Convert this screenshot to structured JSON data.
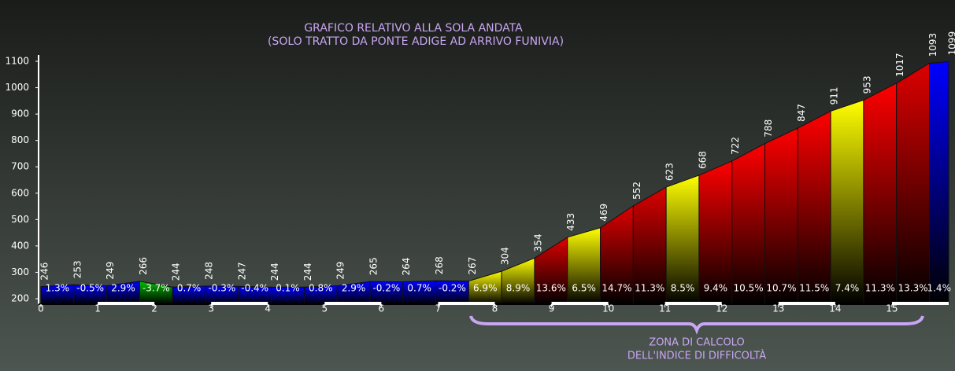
{
  "chart_data": {
    "type": "area",
    "title": "GRAFICO RELATIVO ALLA SOLA ANDATA",
    "subtitle": "(SOLO TRATTO DA PONTE ADIGE AD ARRIVO FUNIVIA)",
    "annotation": [
      "ZONA DI CALCOLO",
      "DELL'INDICE DI DIFFICOLTÀ"
    ],
    "x": [
      0,
      0.58,
      1.16,
      1.74,
      2.32,
      2.9,
      3.48,
      4.06,
      4.64,
      5.22,
      5.8,
      6.38,
      6.96,
      7.54,
      8.12,
      8.7,
      9.28,
      9.86,
      10.44,
      11.02,
      11.6,
      12.18,
      12.76,
      13.34,
      13.92,
      14.5,
      15.08,
      15.66,
      16.0
    ],
    "values": [
      246,
      253,
      249,
      266,
      244,
      248,
      247,
      244,
      244,
      249,
      265,
      264,
      268,
      267,
      304,
      354,
      433,
      469,
      552,
      623,
      668,
      722,
      788,
      847,
      911,
      953,
      1017,
      1093,
      1099
    ],
    "grades": [
      1.3,
      -0.5,
      2.9,
      -3.7,
      0.7,
      -0.3,
      -0.4,
      0.1,
      0.8,
      2.9,
      -0.2,
      0.7,
      -0.2,
      6.9,
      8.9,
      13.6,
      6.5,
      14.7,
      11.3,
      8.5,
      9.4,
      10.5,
      10.7,
      11.5,
      7.4,
      11.3,
      13.3,
      1.4
    ],
    "grade_labels": [
      "1.3%",
      "-0.5%",
      "2.9%",
      "-3.7%",
      "0.7%",
      "-0.3%",
      "-0.4%",
      "0.1%",
      "0.8%",
      "2.9%",
      "-0.2%",
      "0.7%",
      "-0.2%",
      "6.9%",
      "8.9%",
      "13.6%",
      "6.5%",
      "14.7%",
      "11.3%",
      "8.5%",
      "9.4%",
      "10.5%",
      "10.7%",
      "11.5%",
      "7.4%",
      "11.3%",
      "13.3%",
      "1.4%"
    ],
    "colors": [
      "#0000ff",
      "#0000ff",
      "#0000ff",
      "#00c000",
      "#0000ff",
      "#0000ff",
      "#0000ff",
      "#0000ff",
      "#0000ff",
      "#0000ff",
      "#0000ff",
      "#0000ff",
      "#0000ff",
      "#ffff00",
      "#ffff00",
      "#dd0000",
      "#ffff00",
      "#dd0000",
      "#dd0000",
      "#ffff00",
      "#ff0000",
      "#ff0000",
      "#ff0000",
      "#ff0000",
      "#ffff00",
      "#ff0000",
      "#dd0000",
      "#0000ff"
    ],
    "xlim": [
      0,
      16
    ],
    "xticks": [
      0,
      1,
      2,
      3,
      4,
      5,
      6,
      7,
      8,
      9,
      10,
      11,
      12,
      13,
      14,
      15
    ],
    "ylim": [
      200,
      1100
    ],
    "yticks": [
      200,
      300,
      400,
      500,
      600,
      700,
      800,
      900,
      1000,
      1100
    ]
  }
}
